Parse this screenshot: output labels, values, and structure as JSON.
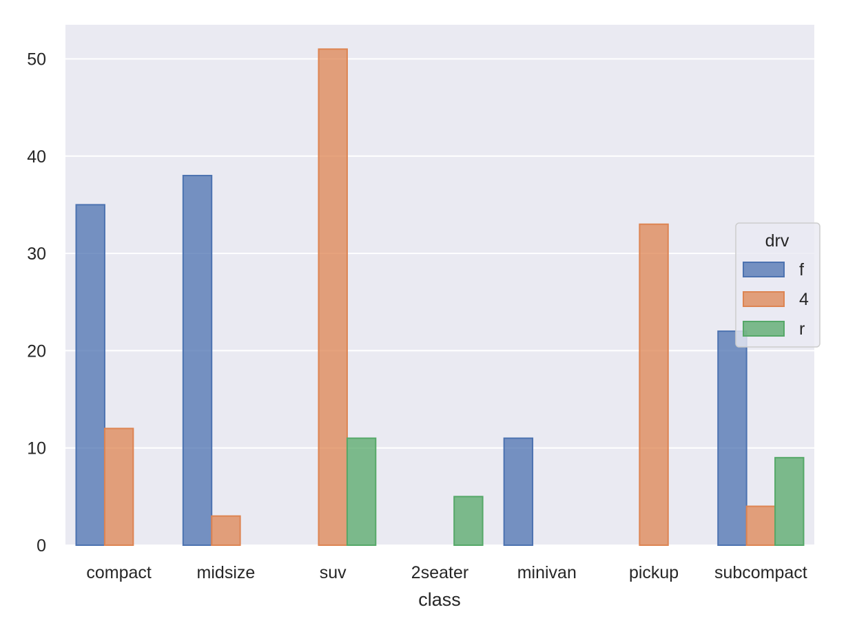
{
  "chart_data": {
    "type": "bar",
    "xlabel": "class",
    "ylabel": "",
    "categories": [
      "compact",
      "midsize",
      "suv",
      "2seater",
      "minivan",
      "pickup",
      "subcompact"
    ],
    "series": [
      {
        "name": "f",
        "values": [
          35,
          38,
          0,
          0,
          11,
          0,
          22
        ],
        "color": "#4c72b0"
      },
      {
        "name": "4",
        "values": [
          12,
          3,
          51,
          0,
          0,
          33,
          4
        ],
        "color": "#dd8452"
      },
      {
        "name": "r",
        "values": [
          0,
          0,
          11,
          5,
          0,
          0,
          9
        ],
        "color": "#55a868"
      }
    ],
    "ylim": [
      0,
      53.5
    ],
    "yticks": [
      "0",
      "10",
      "20",
      "30",
      "40",
      "50"
    ],
    "grid": true,
    "background": "#eaeaf2",
    "legend": {
      "title": "drv",
      "position": "right"
    }
  }
}
